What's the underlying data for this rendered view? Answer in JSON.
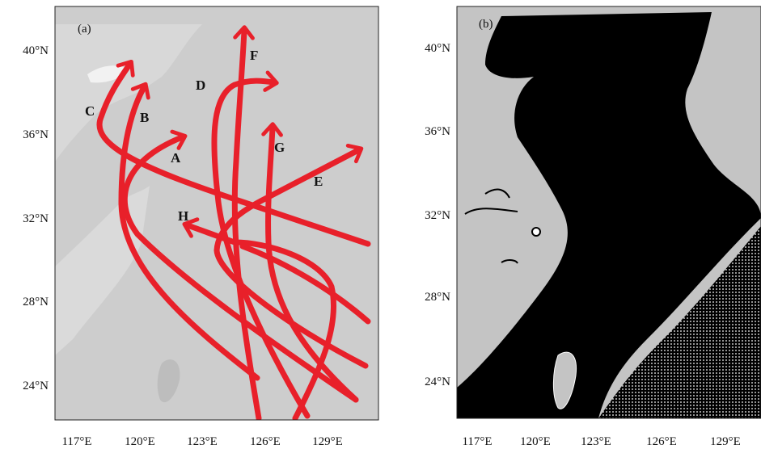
{
  "panels": [
    {
      "label": "(a)",
      "y_ticks": [
        "40°N",
        "36°N",
        "32°N",
        "28°N",
        "24°N"
      ],
      "x_ticks": [
        "117°E",
        "120°E",
        "123°E",
        "126°E",
        "129°E"
      ],
      "track_labels": [
        "A",
        "B",
        "C",
        "D",
        "E",
        "F",
        "G",
        "H"
      ]
    },
    {
      "label": "(b)",
      "y_ticks": [
        "40°N",
        "36°N",
        "32°N",
        "28°N",
        "24°N"
      ],
      "x_ticks": [
        "117°E",
        "120°E",
        "123°E",
        "126°E",
        "129°E"
      ]
    }
  ]
}
